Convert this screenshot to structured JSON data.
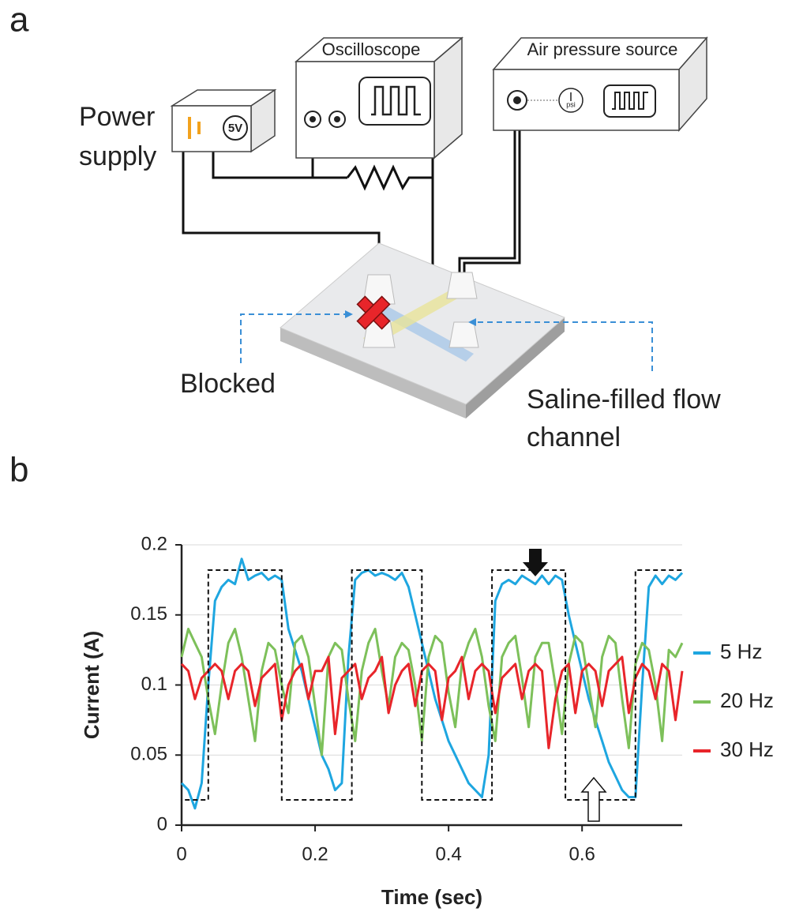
{
  "panel_a": {
    "label": "a",
    "oscilloscope": "Oscilloscope",
    "air_pressure_source": "Air pressure source",
    "power_supply": [
      "Power",
      "supply"
    ],
    "power_supply_voltage": "5V",
    "gauge_unit": "psi",
    "blocked": "Blocked",
    "channel": [
      "Saline-filled flow",
      "channel"
    ]
  },
  "panel_b": {
    "label": "b"
  },
  "chart_data": {
    "type": "line",
    "x_label": "Time (sec)",
    "y_label": "Current (A)",
    "xlim": [
      0,
      0.75
    ],
    "ylim": [
      0,
      0.2
    ],
    "xticks": [
      0,
      0.2,
      0.4,
      0.6
    ],
    "yticks": [
      0,
      0.05,
      0.1,
      0.15,
      0.2
    ],
    "grid": true,
    "legend": "right",
    "x": [
      0,
      0.01,
      0.02,
      0.03,
      0.04,
      0.05,
      0.06,
      0.07,
      0.08,
      0.09,
      0.1,
      0.11,
      0.12,
      0.13,
      0.14,
      0.15,
      0.16,
      0.17,
      0.18,
      0.19,
      0.2,
      0.21,
      0.22,
      0.23,
      0.24,
      0.25,
      0.26,
      0.27,
      0.28,
      0.29,
      0.3,
      0.31,
      0.32,
      0.33,
      0.34,
      0.35,
      0.36,
      0.37,
      0.38,
      0.39,
      0.4,
      0.41,
      0.42,
      0.43,
      0.44,
      0.45,
      0.46,
      0.47,
      0.48,
      0.49,
      0.5,
      0.51,
      0.52,
      0.53,
      0.54,
      0.55,
      0.56,
      0.57,
      0.58,
      0.59,
      0.6,
      0.61,
      0.62,
      0.63,
      0.64,
      0.65,
      0.66,
      0.67,
      0.68,
      0.69,
      0.7,
      0.71,
      0.72,
      0.73,
      0.74,
      0.75
    ],
    "series": [
      {
        "name": "5 Hz",
        "color": "#1ea6e0",
        "values": [
          0.03,
          0.025,
          0.012,
          0.03,
          0.1,
          0.16,
          0.17,
          0.175,
          0.172,
          0.19,
          0.175,
          0.178,
          0.18,
          0.175,
          0.178,
          0.175,
          0.14,
          0.125,
          0.11,
          0.09,
          0.07,
          0.05,
          0.04,
          0.025,
          0.03,
          0.12,
          0.175,
          0.18,
          0.182,
          0.178,
          0.18,
          0.178,
          0.175,
          0.18,
          0.17,
          0.15,
          0.13,
          0.11,
          0.09,
          0.075,
          0.06,
          0.05,
          0.04,
          0.03,
          0.025,
          0.02,
          0.05,
          0.16,
          0.172,
          0.175,
          0.172,
          0.178,
          0.175,
          0.172,
          0.178,
          0.172,
          0.178,
          0.175,
          0.15,
          0.13,
          0.11,
          0.09,
          0.075,
          0.06,
          0.045,
          0.035,
          0.025,
          0.02,
          0.02,
          0.1,
          0.17,
          0.178,
          0.172,
          0.178,
          0.175,
          0.18
        ]
      },
      {
        "name": "20 Hz",
        "color": "#7dc05a",
        "values": [
          0.12,
          0.14,
          0.13,
          0.12,
          0.09,
          0.065,
          0.1,
          0.13,
          0.14,
          0.12,
          0.09,
          0.06,
          0.11,
          0.13,
          0.125,
          0.1,
          0.08,
          0.13,
          0.135,
          0.12,
          0.085,
          0.05,
          0.12,
          0.13,
          0.125,
          0.09,
          0.06,
          0.11,
          0.13,
          0.14,
          0.11,
          0.085,
          0.12,
          0.13,
          0.125,
          0.1,
          0.06,
          0.12,
          0.135,
          0.13,
          0.095,
          0.07,
          0.115,
          0.13,
          0.14,
          0.12,
          0.085,
          0.06,
          0.12,
          0.13,
          0.135,
          0.105,
          0.07,
          0.12,
          0.13,
          0.13,
          0.1,
          0.065,
          0.115,
          0.135,
          0.13,
          0.1,
          0.07,
          0.12,
          0.135,
          0.13,
          0.09,
          0.055,
          0.115,
          0.13,
          0.125,
          0.1,
          0.06,
          0.125,
          0.12,
          0.13
        ]
      },
      {
        "name": "30 Hz",
        "color": "#e8252a",
        "values": [
          0.115,
          0.11,
          0.09,
          0.105,
          0.11,
          0.115,
          0.11,
          0.09,
          0.11,
          0.115,
          0.11,
          0.085,
          0.105,
          0.11,
          0.115,
          0.075,
          0.1,
          0.11,
          0.115,
          0.09,
          0.11,
          0.11,
          0.12,
          0.065,
          0.105,
          0.11,
          0.115,
          0.09,
          0.105,
          0.11,
          0.12,
          0.08,
          0.1,
          0.11,
          0.115,
          0.085,
          0.11,
          0.115,
          0.11,
          0.075,
          0.105,
          0.11,
          0.12,
          0.09,
          0.11,
          0.115,
          0.11,
          0.08,
          0.105,
          0.11,
          0.115,
          0.09,
          0.11,
          0.115,
          0.11,
          0.055,
          0.09,
          0.11,
          0.115,
          0.08,
          0.11,
          0.115,
          0.11,
          0.085,
          0.11,
          0.115,
          0.12,
          0.08,
          0.105,
          0.115,
          0.11,
          0.09,
          0.115,
          0.11,
          0.075,
          0.11
        ]
      }
    ],
    "reference_wave": {
      "color": "#111111",
      "dashed": true,
      "x": [
        0.005,
        0.04,
        0.04,
        0.15,
        0.15,
        0.255,
        0.255,
        0.36,
        0.36,
        0.465,
        0.465,
        0.575,
        0.575,
        0.68,
        0.68,
        0.75
      ],
      "values": [
        0.018,
        0.018,
        0.182,
        0.182,
        0.018,
        0.018,
        0.182,
        0.182,
        0.018,
        0.018,
        0.182,
        0.182,
        0.018,
        0.018,
        0.182,
        0.182
      ]
    }
  }
}
